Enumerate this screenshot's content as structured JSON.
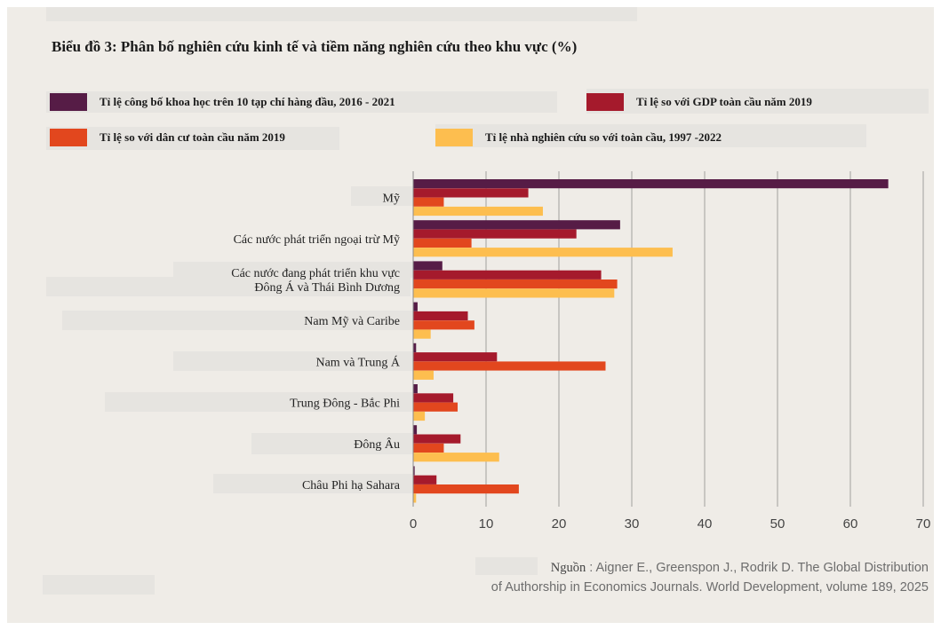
{
  "title": "Biểu đồ 3: Phân bố nghiên cứu kinh tế và tiềm năng nghiên cứu theo khu vực (%)",
  "colors": {
    "background": "#efece7",
    "grid": "#8c8c8c",
    "tick_text": "#444444"
  },
  "chart_data": {
    "type": "bar",
    "orientation": "horizontal",
    "categories": [
      [
        "Mỹ"
      ],
      [
        "Các nước phát triển ngoại trừ Mỹ"
      ],
      [
        "Các nước đang phát triển khu vực",
        "Đông Á và Thái Bình Dương"
      ],
      [
        "Nam Mỹ và Caribe"
      ],
      [
        "Nam và Trung Á"
      ],
      [
        "Trung Đông - Bắc Phi"
      ],
      [
        "Đông Âu"
      ],
      [
        "Châu Phi hạ Sahara"
      ]
    ],
    "series": [
      {
        "name": "Tỉ lệ công bố khoa học trên 10 tạp chí hàng đầu, 2016 - 2021",
        "color": "#561c46",
        "values": [
          65.2,
          28.4,
          4.0,
          0.6,
          0.4,
          0.6,
          0.5,
          0.2
        ]
      },
      {
        "name": "Tỉ lệ so với GDP toàn cầu năm 2019",
        "color": "#a51a2c",
        "values": [
          15.8,
          22.4,
          25.8,
          7.5,
          11.5,
          5.5,
          6.5,
          3.2
        ]
      },
      {
        "name": "Tỉ lệ so với dân cư toàn cầu năm 2019",
        "color": "#e2471e",
        "values": [
          4.2,
          8.0,
          28.0,
          8.4,
          26.4,
          6.1,
          4.2,
          14.5
        ]
      },
      {
        "name": "Tỉ lệ nhà nghiên cứu so với toàn cầu, 1997 -2022",
        "color": "#fdbe4f",
        "values": [
          17.8,
          35.6,
          27.6,
          2.4,
          2.8,
          1.6,
          11.8,
          0.4
        ]
      }
    ],
    "xlim": [
      0,
      70
    ],
    "xticks": [
      0,
      10,
      20,
      30,
      40,
      50,
      60,
      70
    ],
    "grid": true,
    "legend_position": "top"
  },
  "source": {
    "prefix": "Nguồn",
    "line1": " : Aigner E., Greenspon J., Rodrik D. The Global Distribution",
    "line2": "of Authorship in Economics Journals. World Development, volume 189, 2025"
  }
}
